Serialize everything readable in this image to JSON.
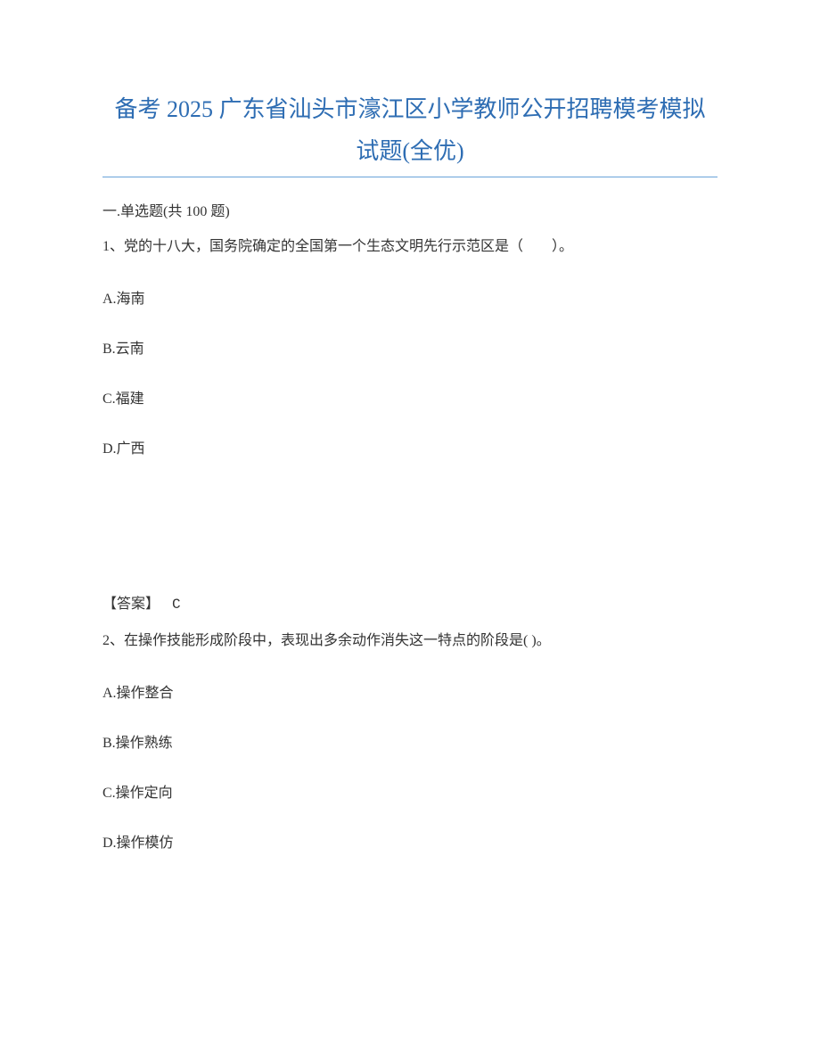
{
  "title": {
    "line1": "备考 2025 广东省汕头市濠江区小学教师公开招聘模考模拟",
    "line2": "试题(全优)",
    "color": "#2e6db3",
    "fontsize": 26
  },
  "divider": {
    "color": "#6aa4d9"
  },
  "section": {
    "header": "一.单选题(共 100 题)"
  },
  "q1": {
    "text": "1、党的十八大，国务院确定的全国第一个生态文明先行示范区是（　　）。",
    "optA": "A.海南",
    "optB": "B.云南",
    "optC": "C.福建",
    "optD": "D.广西",
    "answerLabel": "【答案】",
    "answerValue": "C"
  },
  "q2": {
    "text": "2、在操作技能形成阶段中，表现出多余动作消失这一特点的阶段是( )。",
    "optA": "A.操作整合",
    "optB": "B.操作熟练",
    "optC": "C.操作定向",
    "optD": "D.操作模仿"
  },
  "styles": {
    "body_bg": "#ffffff",
    "text_color": "#333333",
    "body_fontsize": 16,
    "option_spacing": 32
  }
}
